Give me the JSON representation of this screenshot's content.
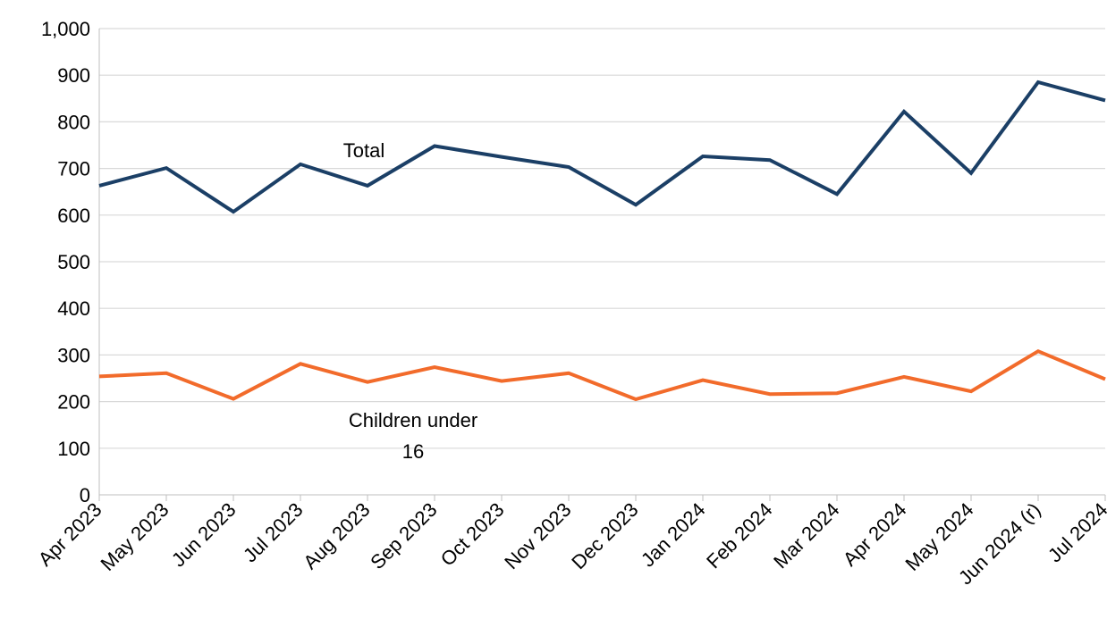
{
  "chart_data": {
    "type": "line",
    "categories": [
      "Apr 2023",
      "May 2023",
      "Jun 2023",
      "Jul 2023",
      "Aug 2023",
      "Sep 2023",
      "Oct 2023",
      "Nov 2023",
      "Dec 2023",
      "Jan 2024",
      "Feb 2024",
      "Mar 2024",
      "Apr 2024",
      "May 2024",
      "Jun 2024 (r)",
      "Jul 2024"
    ],
    "y_ticks": [
      "0",
      "100",
      "200",
      "300",
      "400",
      "500",
      "600",
      "700",
      "800",
      "900",
      "1,000"
    ],
    "ylim": [
      0,
      1000
    ],
    "grid": "horizontal",
    "legend": "none",
    "series": [
      {
        "name": "Total",
        "color": "#1B3F66",
        "values": [
          663,
          701,
          607,
          709,
          663,
          748,
          725,
          703,
          622,
          726,
          718,
          645,
          822,
          690,
          885,
          846
        ]
      },
      {
        "name": "Children under 16",
        "color": "#F26B2B",
        "values": [
          254,
          261,
          206,
          281,
          242,
          274,
          244,
          261,
          205,
          246,
          216,
          218,
          253,
          222,
          308,
          248
        ]
      }
    ],
    "annotations": [
      {
        "text": "Total",
        "series": 0
      },
      {
        "text_line1": "Children under",
        "text_line2": "16",
        "series": 1
      }
    ]
  }
}
